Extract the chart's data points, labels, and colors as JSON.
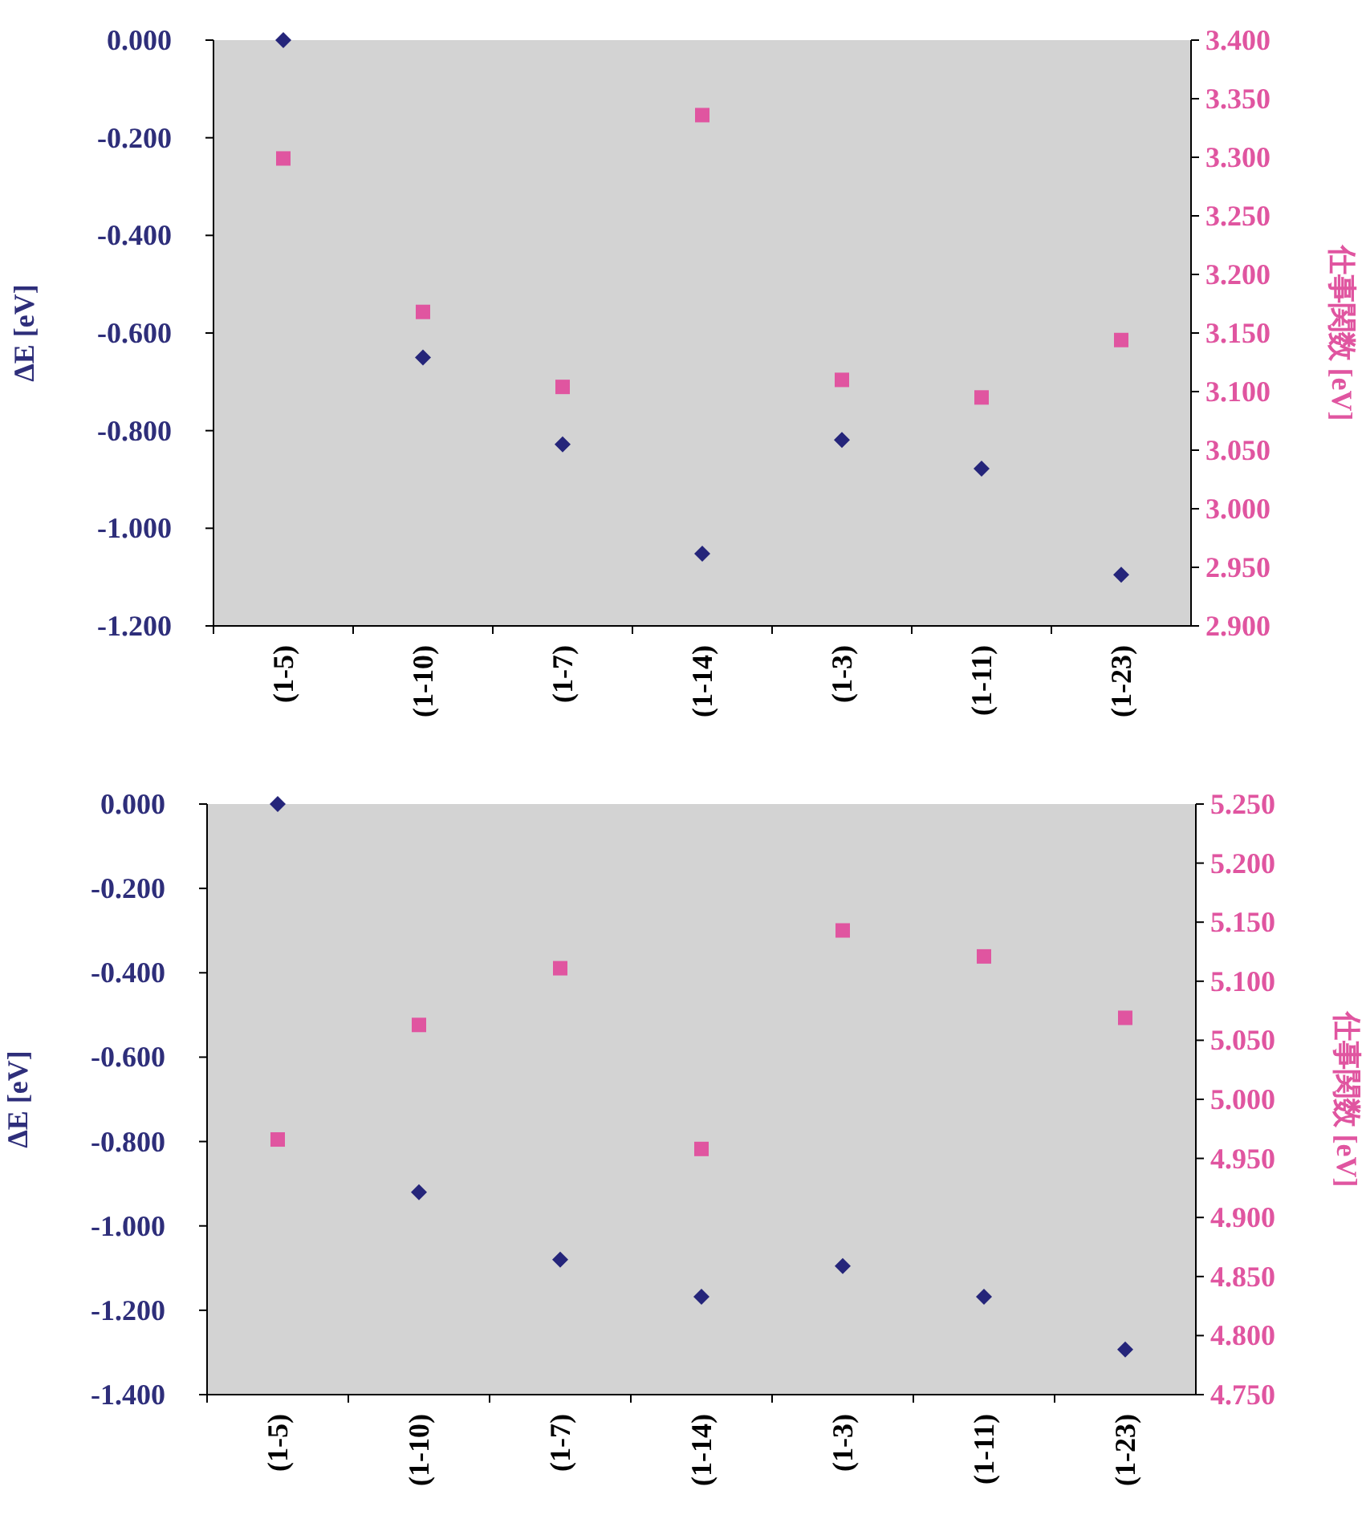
{
  "chart_data": [
    {
      "type": "scatter",
      "categories": [
        "(1-5)",
        "(1-10)",
        "(1-7)",
        "(1-14)",
        "(1-3)",
        "(1-11)",
        "(1-23)"
      ],
      "ylabel": "ΔE [eV]",
      "y2label": "仕事関数 [eV]",
      "grid": false,
      "ylim": [
        -1.2,
        0
      ],
      "yticks": [
        {
          "value": 0,
          "label": "0.000"
        },
        {
          "value": -0.2,
          "label": "-0.200"
        },
        {
          "value": -0.4,
          "label": "-0.400"
        },
        {
          "value": -0.6,
          "label": "-0.600"
        },
        {
          "value": -0.8,
          "label": "-0.800"
        },
        {
          "value": -1.0,
          "label": "-1.000"
        },
        {
          "value": -1.2,
          "label": "-1.200"
        }
      ],
      "y2lim": [
        2.9,
        3.4
      ],
      "y2ticks": [
        {
          "value": 3.4,
          "label": "3.400"
        },
        {
          "value": 3.35,
          "label": "3.350"
        },
        {
          "value": 3.3,
          "label": "3.300"
        },
        {
          "value": 3.25,
          "label": "3.250"
        },
        {
          "value": 3.2,
          "label": "3.200"
        },
        {
          "value": 3.15,
          "label": "3.150"
        },
        {
          "value": 3.1,
          "label": "3.100"
        },
        {
          "value": 3.05,
          "label": "3.050"
        },
        {
          "value": 3.0,
          "label": "3.000"
        },
        {
          "value": 2.95,
          "label": "2.950"
        },
        {
          "value": 2.9,
          "label": "2.900"
        }
      ],
      "series": [
        {
          "type": "scatter",
          "marker": "diamond",
          "color": "#25257a",
          "values": [
            0.0,
            -0.65,
            -0.828,
            -1.052,
            -0.819,
            -0.878,
            -1.095
          ]
        },
        {
          "type": "scatter",
          "marker": "square",
          "axis": "y2",
          "color": "#e055a0",
          "values": [
            3.299,
            3.168,
            3.104,
            3.336,
            3.11,
            3.095,
            3.144
          ]
        }
      ]
    },
    {
      "type": "scatter",
      "categories": [
        "(1-5)",
        "(1-10)",
        "(1-7)",
        "(1-14)",
        "(1-3)",
        "(1-11)",
        "(1-23)"
      ],
      "ylabel": "ΔE [eV]",
      "y2label": "仕事関数 [eV]",
      "grid": false,
      "ylim": [
        -1.4,
        0
      ],
      "yticks": [
        {
          "value": 0,
          "label": "0.000"
        },
        {
          "value": -0.2,
          "label": "-0.200"
        },
        {
          "value": -0.4,
          "label": "-0.400"
        },
        {
          "value": -0.6,
          "label": "-0.600"
        },
        {
          "value": -0.8,
          "label": "-0.800"
        },
        {
          "value": -1.0,
          "label": "-1.000"
        },
        {
          "value": -1.2,
          "label": "-1.200"
        },
        {
          "value": -1.4,
          "label": "-1.400"
        }
      ],
      "y2lim": [
        4.75,
        5.25
      ],
      "y2ticks": [
        {
          "value": 5.25,
          "label": "5.250"
        },
        {
          "value": 5.2,
          "label": "5.200"
        },
        {
          "value": 5.15,
          "label": "5.150"
        },
        {
          "value": 5.1,
          "label": "5.100"
        },
        {
          "value": 5.05,
          "label": "5.050"
        },
        {
          "value": 5.0,
          "label": "5.000"
        },
        {
          "value": 4.95,
          "label": "4.950"
        },
        {
          "value": 4.9,
          "label": "4.900"
        },
        {
          "value": 4.85,
          "label": "4.850"
        },
        {
          "value": 4.8,
          "label": "4.800"
        },
        {
          "value": 4.75,
          "label": "4.750"
        }
      ],
      "series": [
        {
          "type": "scatter",
          "marker": "diamond",
          "color": "#25257a",
          "values": [
            0.0,
            -0.92,
            -1.08,
            -1.168,
            -1.095,
            -1.168,
            -1.293
          ]
        },
        {
          "type": "scatter",
          "marker": "square",
          "axis": "y2",
          "color": "#e055a0",
          "values": [
            4.966,
            5.063,
            5.111,
            4.958,
            5.143,
            5.121,
            5.069
          ]
        }
      ]
    }
  ]
}
